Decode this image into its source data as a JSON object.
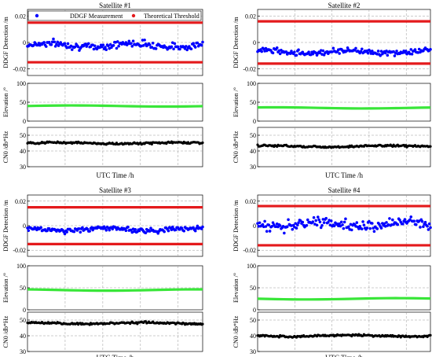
{
  "legend": {
    "measurement": "DDGF Measurement",
    "threshold": "Theoretical Threshold"
  },
  "colors": {
    "measurement": "#0000ff",
    "threshold": "#e41a1c",
    "elevation": "#39e639",
    "cn0": "#000000",
    "grid": "#999999"
  },
  "chart_data": [
    {
      "type": "scatter",
      "title": "Satellite #1",
      "xlabel": "UTC Time /h",
      "grid": true,
      "legend_position": "top",
      "panels": [
        {
          "id": "ddgf",
          "ylabel": "DDGF Detection /m",
          "ylim": [
            -0.025,
            0.025
          ],
          "yticks": [
            "0.02",
            "0",
            "-0.02"
          ],
          "ytick_values": [
            0.02,
            0,
            -0.02
          ],
          "threshold": 0.015,
          "measurement_center": -0.002,
          "measurement_spread": 0.004
        },
        {
          "id": "elev",
          "ylabel": "Elevation /°",
          "ylim": [
            0,
            100
          ],
          "yticks": [
            "100",
            "50",
            "0"
          ],
          "ytick_values": [
            100,
            50,
            0
          ],
          "level": 40
        },
        {
          "id": "cn0",
          "ylabel": "CN0 /db*Hz",
          "ylim": [
            30,
            55
          ],
          "yticks": [
            "50",
            "40",
            "30"
          ],
          "ytick_values": [
            50,
            40,
            30
          ],
          "level": 45
        }
      ]
    },
    {
      "type": "scatter",
      "title": "Satellite #2",
      "xlabel": "UTC Time /h",
      "grid": true,
      "panels": [
        {
          "id": "ddgf",
          "ylabel": "DDGF Detection /m",
          "ylim": [
            -0.025,
            0.025
          ],
          "yticks": [
            "0.02",
            "0",
            "-0.02"
          ],
          "ytick_values": [
            0.02,
            0,
            -0.02
          ],
          "threshold": 0.016,
          "measurement_center": -0.007,
          "measurement_spread": 0.003
        },
        {
          "id": "elev",
          "ylabel": "Elevation /°",
          "ylim": [
            0,
            100
          ],
          "yticks": [
            "100",
            "50",
            "0"
          ],
          "ytick_values": [
            100,
            50,
            0
          ],
          "level": 35
        },
        {
          "id": "cn0",
          "ylabel": "CN0 /db*Hz",
          "ylim": [
            30,
            55
          ],
          "yticks": [
            "50",
            "40",
            "30"
          ],
          "ytick_values": [
            50,
            40,
            30
          ],
          "level": 43
        }
      ]
    },
    {
      "type": "scatter",
      "title": "Satellite #3",
      "xlabel": "UTC Time /h",
      "grid": true,
      "panels": [
        {
          "id": "ddgf",
          "ylabel": "DDGF Detection /m",
          "ylim": [
            -0.025,
            0.025
          ],
          "yticks": [
            "0.02",
            "0",
            "-0.02"
          ],
          "ytick_values": [
            0.02,
            0,
            -0.02
          ],
          "threshold": 0.015,
          "measurement_center": -0.003,
          "measurement_spread": 0.003
        },
        {
          "id": "elev",
          "ylabel": "Elevation /°",
          "ylim": [
            0,
            100
          ],
          "yticks": [
            "100",
            "50",
            "0"
          ],
          "ytick_values": [
            100,
            50,
            0
          ],
          "level": 45
        },
        {
          "id": "cn0",
          "ylabel": "CN0 /db*Hz",
          "ylim": [
            30,
            55
          ],
          "yticks": [
            "50",
            "40",
            "30"
          ],
          "ytick_values": [
            50,
            40,
            30
          ],
          "level": 48
        }
      ]
    },
    {
      "type": "scatter",
      "title": "Satellite #4",
      "xlabel": "UTC Time /h",
      "grid": true,
      "panels": [
        {
          "id": "ddgf",
          "ylabel": "DDGF Detection /m",
          "ylim": [
            -0.025,
            0.025
          ],
          "yticks": [
            "0.02",
            "0",
            "-0.02"
          ],
          "ytick_values": [
            0.02,
            0,
            -0.02
          ],
          "threshold": 0.016,
          "measurement_center": 0.001,
          "measurement_spread": 0.006
        },
        {
          "id": "elev",
          "ylabel": "Elevation /°",
          "ylim": [
            0,
            100
          ],
          "yticks": [
            "100",
            "50",
            "0"
          ],
          "ytick_values": [
            100,
            50,
            0
          ],
          "level": 25
        },
        {
          "id": "cn0",
          "ylabel": "CN0 /db*Hz",
          "ylim": [
            30,
            55
          ],
          "yticks": [
            "50",
            "40",
            "30"
          ],
          "ytick_values": [
            50,
            40,
            30
          ],
          "level": 40
        }
      ]
    }
  ]
}
